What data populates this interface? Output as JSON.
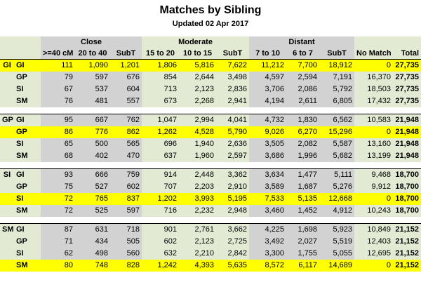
{
  "title": "Matches by Sibling",
  "subtitle": "Updated 02 Apr 2017",
  "groups": {
    "close": "Close",
    "moderate": "Moderate",
    "distant": "Distant"
  },
  "columns": [
    "",
    "",
    ">=40 cM",
    "20 to 40",
    "SubT",
    "15 to 20",
    "10 to 15",
    "SubT",
    "7 to 10",
    "6 to 7",
    "SubT",
    "No Match",
    "Total"
  ],
  "blocks": [
    {
      "name": "GI",
      "rows": [
        {
          "label": "GI",
          "values": [
            "111",
            "1,090",
            "1,201",
            "1,806",
            "5,816",
            "7,622",
            "11,212",
            "7,700",
            "18,912",
            "0",
            "27,735"
          ]
        },
        {
          "label": "GP",
          "values": [
            "79",
            "597",
            "676",
            "854",
            "2,644",
            "3,498",
            "4,597",
            "2,594",
            "7,191",
            "16,370",
            "27,735"
          ]
        },
        {
          "label": "SI",
          "values": [
            "67",
            "537",
            "604",
            "713",
            "2,123",
            "2,836",
            "3,706",
            "2,086",
            "5,792",
            "18,503",
            "27,735"
          ]
        },
        {
          "label": "SM",
          "values": [
            "76",
            "481",
            "557",
            "673",
            "2,268",
            "2,941",
            "4,194",
            "2,611",
            "6,805",
            "17,432",
            "27,735"
          ]
        }
      ]
    },
    {
      "name": "GP",
      "rows": [
        {
          "label": "GI",
          "values": [
            "95",
            "667",
            "762",
            "1,047",
            "2,994",
            "4,041",
            "4,732",
            "1,830",
            "6,562",
            "10,583",
            "21,948"
          ]
        },
        {
          "label": "GP",
          "values": [
            "86",
            "776",
            "862",
            "1,262",
            "4,528",
            "5,790",
            "9,026",
            "6,270",
            "15,296",
            "0",
            "21,948"
          ]
        },
        {
          "label": "SI",
          "values": [
            "65",
            "500",
            "565",
            "696",
            "1,940",
            "2,636",
            "3,505",
            "2,082",
            "5,587",
            "13,160",
            "21,948"
          ]
        },
        {
          "label": "SM",
          "values": [
            "68",
            "402",
            "470",
            "637",
            "1,960",
            "2,597",
            "3,686",
            "1,996",
            "5,682",
            "13,199",
            "21,948"
          ]
        }
      ]
    },
    {
      "name": "SI",
      "rows": [
        {
          "label": "GI",
          "values": [
            "93",
            "666",
            "759",
            "914",
            "2,448",
            "3,362",
            "3,634",
            "1,477",
            "5,111",
            "9,468",
            "18,700"
          ]
        },
        {
          "label": "GP",
          "values": [
            "75",
            "527",
            "602",
            "707",
            "2,203",
            "2,910",
            "3,589",
            "1,687",
            "5,276",
            "9,912",
            "18,700"
          ]
        },
        {
          "label": "SI",
          "values": [
            "72",
            "765",
            "837",
            "1,202",
            "3,993",
            "5,195",
            "7,533",
            "5,135",
            "12,668",
            "0",
            "18,700"
          ]
        },
        {
          "label": "SM",
          "values": [
            "72",
            "525",
            "597",
            "716",
            "2,232",
            "2,948",
            "3,460",
            "1,452",
            "4,912",
            "10,243",
            "18,700"
          ]
        }
      ]
    },
    {
      "name": "SM",
      "rows": [
        {
          "label": "GI",
          "values": [
            "87",
            "631",
            "718",
            "901",
            "2,761",
            "3,662",
            "4,225",
            "1,698",
            "5,923",
            "10,849",
            "21,152"
          ]
        },
        {
          "label": "GP",
          "values": [
            "71",
            "434",
            "505",
            "602",
            "2,123",
            "2,725",
            "3,492",
            "2,027",
            "5,519",
            "12,403",
            "21,152"
          ]
        },
        {
          "label": "SI",
          "values": [
            "62",
            "498",
            "560",
            "632",
            "2,210",
            "2,842",
            "3,300",
            "1,755",
            "5,055",
            "12,695",
            "21,152"
          ]
        },
        {
          "label": "SM",
          "values": [
            "80",
            "748",
            "828",
            "1,242",
            "4,393",
            "5,635",
            "8,572",
            "6,117",
            "14,689",
            "0",
            "21,152"
          ]
        }
      ]
    }
  ],
  "colors": {
    "highlight": "#ffff00",
    "gray": "#d2d2d2",
    "green": "#e3ead4"
  }
}
